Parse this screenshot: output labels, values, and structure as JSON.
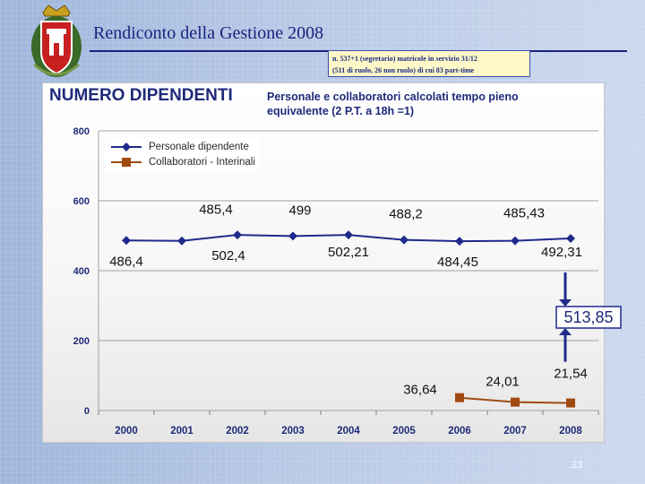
{
  "slide": {
    "title": "Rendiconto della Gestione 2008",
    "note_line1": "n. 537+1 (segretario) matricole in servizio 31/12",
    "note_line2": "(511 di ruolo, 26 non ruolo) di cui 83 part-time",
    "page_number": "23",
    "callout_value": "513,85"
  },
  "colors": {
    "title": "#1a237e",
    "series1": "#1f2a8a",
    "series2": "#a04a10",
    "arrow": "#1f2a8a"
  },
  "chart_data": {
    "type": "line",
    "title": "NUMERO DIPENDENTI",
    "subtitle_line1": "Personale e collaboratori calcolati tempo pieno",
    "subtitle_line2": "equivalente (2 P.T. a 18h =1)",
    "x": [
      "2000",
      "2001",
      "2002",
      "2003",
      "2004",
      "2005",
      "2006",
      "2007",
      "2008"
    ],
    "ylim": [
      0,
      800
    ],
    "yticks": [
      "0",
      "200",
      "400",
      "600",
      "800"
    ],
    "grid": true,
    "legend_position": "top-left",
    "series": [
      {
        "name": "Personale dipendente",
        "values": [
          486.4,
          485.4,
          502.4,
          499,
          502.21,
          488.2,
          484.45,
          485.43,
          492.31
        ],
        "labels": [
          "486,4",
          "485,4",
          "502,4",
          "499",
          "502,21",
          "488,2",
          "484,45",
          "485,43",
          "492,31"
        ]
      },
      {
        "name": "Collaboratori - Interinali",
        "values": [
          null,
          null,
          null,
          null,
          null,
          null,
          36.64,
          24.01,
          21.54
        ],
        "labels": [
          "",
          "",
          "",
          "",
          "",
          "",
          "36,64",
          "24,01",
          "21,54"
        ]
      }
    ]
  }
}
